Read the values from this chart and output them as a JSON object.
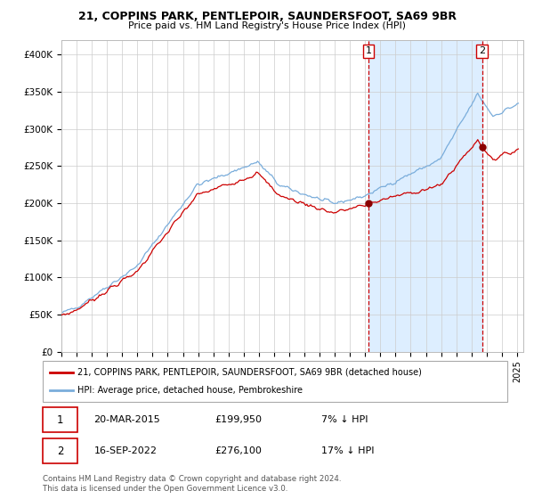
{
  "title": "21, COPPINS PARK, PENTLEPOIR, SAUNDERSFOOT, SA69 9BR",
  "subtitle": "Price paid vs. HM Land Registry's House Price Index (HPI)",
  "ylabel_ticks": [
    "£0",
    "£50K",
    "£100K",
    "£150K",
    "£200K",
    "£250K",
    "£300K",
    "£350K",
    "£400K"
  ],
  "ytick_vals": [
    0,
    50000,
    100000,
    150000,
    200000,
    250000,
    300000,
    350000,
    400000
  ],
  "ylim": [
    0,
    420000
  ],
  "sale1_date": "2015-03-20",
  "sale1_price": 199950,
  "sale2_date": "2022-09-16",
  "sale2_price": 276100,
  "legend_property": "21, COPPINS PARK, PENTLEPOIR, SAUNDERSFOOT, SA69 9BR (detached house)",
  "legend_hpi": "HPI: Average price, detached house, Pembrokeshire",
  "annotation1_date": "20-MAR-2015",
  "annotation1_price": "£199,950",
  "annotation1_pct": "7% ↓ HPI",
  "annotation2_date": "16-SEP-2022",
  "annotation2_price": "£276,100",
  "annotation2_pct": "17% ↓ HPI",
  "footer": "Contains HM Land Registry data © Crown copyright and database right 2024.\nThis data is licensed under the Open Government Licence v3.0.",
  "property_color": "#cc0000",
  "hpi_color": "#7aaddb",
  "shaded_color": "#ddeeff",
  "dashed_line_color": "#cc0000"
}
